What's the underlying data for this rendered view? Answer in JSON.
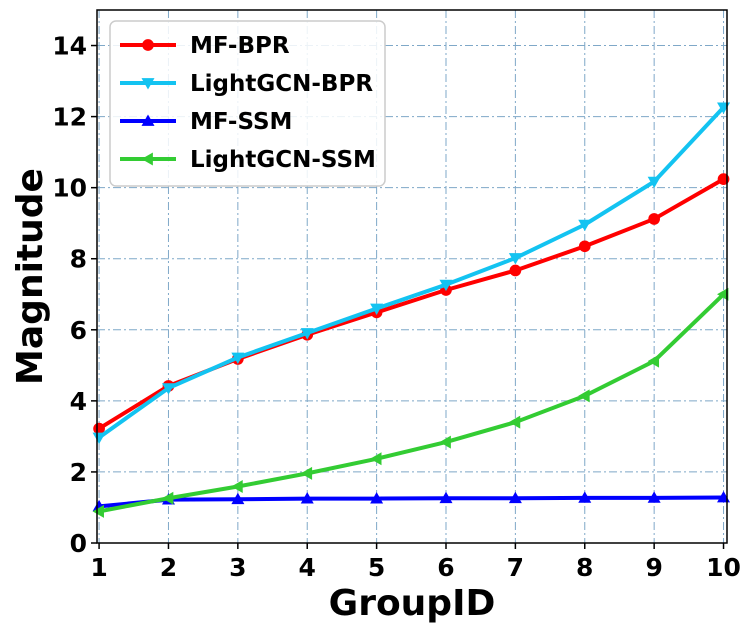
{
  "chart_data": {
    "type": "line",
    "xlabel": "GroupID",
    "ylabel": "Magnitude",
    "xlim": [
      0.97,
      10.05
    ],
    "ylim": [
      0,
      15
    ],
    "xticks": [
      "1",
      "2",
      "3",
      "4",
      "5",
      "6",
      "7",
      "8",
      "9",
      "10"
    ],
    "yticks": [
      "0",
      "2",
      "4",
      "6",
      "8",
      "10",
      "12",
      "14"
    ],
    "x": [
      1,
      2,
      3,
      4,
      5,
      6,
      7,
      8,
      9,
      10
    ],
    "grid": true,
    "legend_position": "top-left",
    "series": [
      {
        "name": "MF-BPR",
        "color": "#ff0000",
        "marker": "circle",
        "values": [
          3.22,
          4.42,
          5.18,
          5.86,
          6.49,
          7.12,
          7.67,
          8.35,
          9.12,
          10.24
        ]
      },
      {
        "name": "LightGCN-BPR",
        "color": "#13c3f1",
        "marker": "triangle-down",
        "values": [
          2.97,
          4.36,
          5.22,
          5.91,
          6.6,
          7.27,
          8.02,
          8.96,
          10.17,
          12.26
        ]
      },
      {
        "name": "MF-SSM",
        "color": "#0000ff",
        "marker": "triangle-up",
        "values": [
          1.03,
          1.22,
          1.23,
          1.25,
          1.25,
          1.26,
          1.26,
          1.27,
          1.27,
          1.28
        ]
      },
      {
        "name": "LightGCN-SSM",
        "color": "#33cc33",
        "marker": "triangle-left",
        "values": [
          0.89,
          1.26,
          1.59,
          1.96,
          2.37,
          2.84,
          3.4,
          4.14,
          5.12,
          7.0
        ]
      }
    ]
  }
}
